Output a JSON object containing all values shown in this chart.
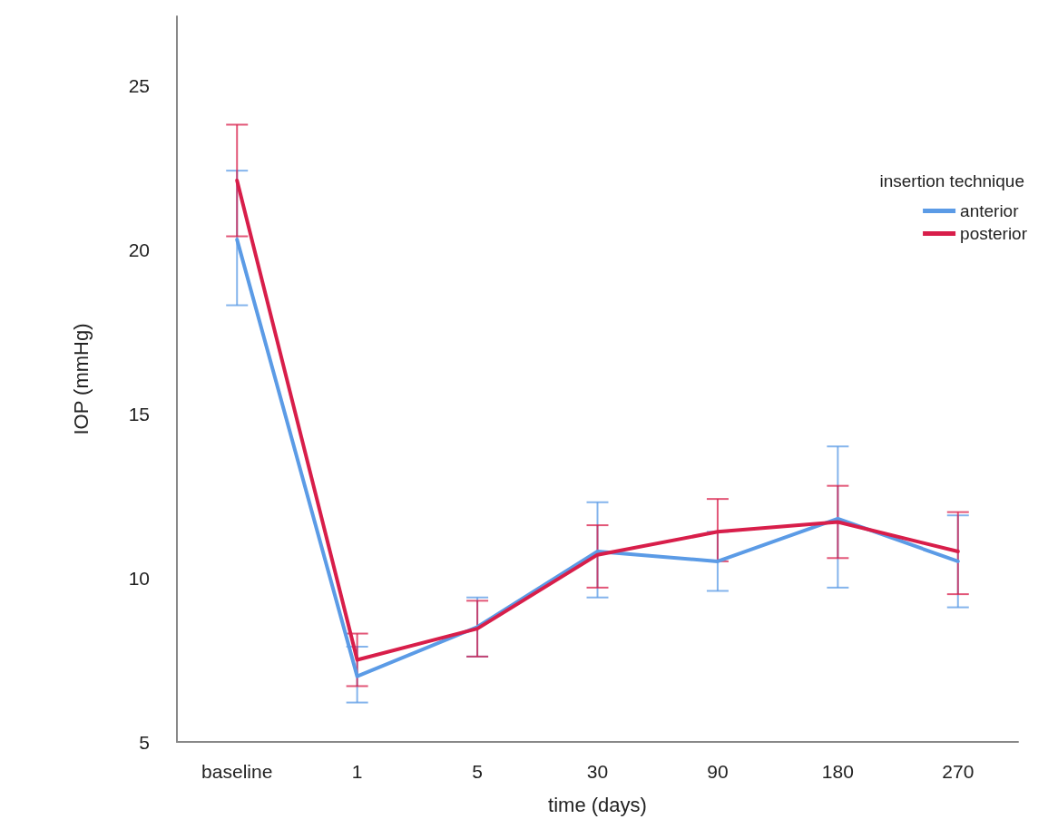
{
  "chart_data": {
    "type": "line",
    "xlabel": "time (days)",
    "ylabel": "IOP (mmHg)",
    "legend_title": "insertion technique",
    "categories": [
      "baseline",
      "1",
      "5",
      "30",
      "90",
      "180",
      "270"
    ],
    "series": [
      {
        "name": "anterior",
        "color": "#5b9be6",
        "values": [
          20.3,
          7.0,
          8.5,
          10.8,
          10.5,
          11.8,
          10.5
        ],
        "errors": [
          [
            18.3,
            22.4
          ],
          [
            6.2,
            7.9
          ],
          [
            7.6,
            9.4
          ],
          [
            9.4,
            12.3
          ],
          [
            9.6,
            11.4
          ],
          [
            9.7,
            14.0
          ],
          [
            9.1,
            11.9
          ]
        ]
      },
      {
        "name": "posterior",
        "color": "#d81e4a",
        "values": [
          22.1,
          7.5,
          8.45,
          10.7,
          11.4,
          11.7,
          10.8
        ],
        "errors": [
          [
            20.4,
            23.8
          ],
          [
            6.7,
            8.3
          ],
          [
            7.6,
            9.3
          ],
          [
            9.7,
            11.6
          ],
          [
            10.5,
            12.4
          ],
          [
            10.6,
            12.8
          ],
          [
            9.5,
            12.0
          ]
        ]
      }
    ],
    "ylim": [
      5,
      27.1
    ],
    "yticks": [
      5,
      10,
      15,
      20,
      25
    ],
    "grid": false,
    "legend": "top right",
    "marker": "none",
    "line_style": "solid"
  }
}
